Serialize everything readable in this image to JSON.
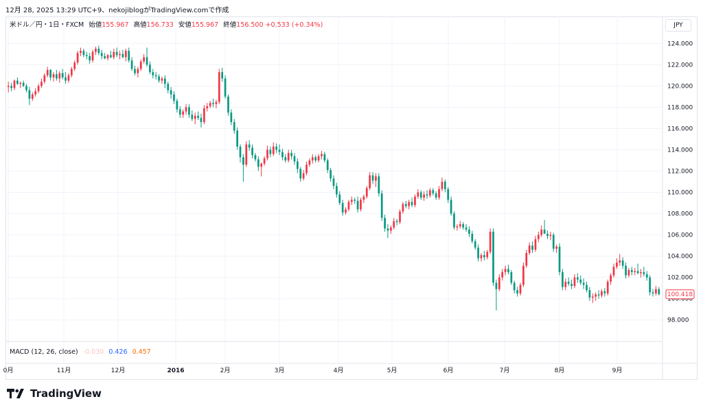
{
  "timestamp": "12月 28, 2025 13:29 UTC+9、nekojiblogがTradingView.comで作成",
  "legend": {
    "symbol": "米ドル／円・1日・FXCM",
    "open_label": "始値",
    "open": "155.967",
    "high_label": "高値",
    "high": "156.733",
    "low_label": "安値",
    "low": "155.967",
    "close_label": "終値",
    "close": "156.500",
    "change": "+0.533 (+0.34%)"
  },
  "currency": "JPY",
  "macd": {
    "label": "MACD (12, 26, close)",
    "hist": "-0.030",
    "macd": "0.426",
    "signal": "0.457"
  },
  "logo_text": "TradingView",
  "colors": {
    "up": "#f23645",
    "down": "#089981",
    "grid": "#f0f3fa",
    "price_tag": "#f23645"
  },
  "chart_data": {
    "type": "candlestick",
    "ylim": [
      96.5,
      125.5
    ],
    "yticks": [
      "124.000",
      "122.000",
      "120.000",
      "118.000",
      "116.000",
      "114.000",
      "112.000",
      "110.000",
      "108.000",
      "106.000",
      "104.000",
      "102.000",
      "100.000",
      "98.000"
    ],
    "last_price": "100.418",
    "x_labels": [
      "0月",
      "11月",
      "12月",
      "2016",
      "2月",
      "3月",
      "4月",
      "5月",
      "6月",
      "7月",
      "8月",
      "9月"
    ],
    "candles": [
      [
        119.9,
        120.4,
        119.4,
        120.0
      ],
      [
        120.0,
        120.3,
        119.5,
        119.8
      ],
      [
        119.8,
        120.6,
        119.6,
        120.5
      ],
      [
        120.5,
        120.8,
        120.1,
        120.2
      ],
      [
        120.2,
        120.4,
        119.8,
        120.3
      ],
      [
        120.3,
        120.5,
        119.9,
        120.0
      ],
      [
        120.0,
        120.2,
        119.4,
        119.6
      ],
      [
        119.6,
        119.9,
        118.2,
        118.8
      ],
      [
        118.8,
        119.4,
        118.6,
        119.2
      ],
      [
        119.2,
        119.8,
        119.0,
        119.5
      ],
      [
        119.5,
        120.2,
        119.3,
        120.0
      ],
      [
        120.0,
        120.7,
        119.8,
        120.4
      ],
      [
        120.4,
        121.2,
        120.2,
        121.0
      ],
      [
        121.0,
        121.8,
        120.8,
        121.5
      ],
      [
        121.5,
        121.6,
        120.5,
        120.8
      ],
      [
        120.8,
        121.3,
        120.4,
        121.1
      ],
      [
        121.1,
        121.5,
        120.5,
        120.7
      ],
      [
        120.7,
        121.4,
        120.3,
        121.2
      ],
      [
        121.2,
        121.6,
        120.6,
        120.8
      ],
      [
        120.8,
        121.3,
        120.2,
        120.5
      ],
      [
        120.5,
        121.2,
        120.3,
        121.0
      ],
      [
        121.0,
        121.8,
        120.8,
        121.6
      ],
      [
        121.6,
        122.4,
        121.4,
        122.2
      ],
      [
        122.2,
        123.3,
        122.0,
        123.1
      ],
      [
        123.1,
        123.6,
        122.8,
        123.3
      ],
      [
        123.3,
        123.5,
        122.7,
        122.9
      ],
      [
        122.9,
        123.2,
        122.5,
        122.8
      ],
      [
        122.8,
        123.1,
        122.1,
        122.4
      ],
      [
        122.4,
        123.4,
        122.2,
        123.2
      ],
      [
        123.2,
        123.7,
        122.9,
        123.5
      ],
      [
        123.5,
        123.8,
        122.9,
        123.1
      ],
      [
        123.1,
        123.4,
        122.5,
        122.8
      ],
      [
        122.8,
        123.1,
        122.5,
        122.6
      ],
      [
        122.6,
        123.0,
        122.4,
        122.9
      ],
      [
        122.9,
        123.3,
        122.6,
        122.7
      ],
      [
        122.7,
        123.5,
        122.5,
        123.2
      ],
      [
        123.2,
        123.6,
        122.7,
        122.9
      ],
      [
        122.9,
        123.3,
        122.5,
        123.0
      ],
      [
        123.0,
        123.4,
        122.6,
        122.7
      ],
      [
        122.7,
        123.5,
        122.3,
        123.3
      ],
      [
        123.3,
        123.6,
        122.2,
        122.4
      ],
      [
        122.4,
        122.7,
        121.4,
        121.6
      ],
      [
        121.6,
        121.9,
        121.0,
        121.2
      ],
      [
        121.2,
        121.8,
        120.8,
        121.6
      ],
      [
        121.6,
        122.5,
        121.4,
        122.3
      ],
      [
        122.3,
        123.0,
        122.1,
        122.7
      ],
      [
        122.7,
        123.6,
        121.8,
        122.0
      ],
      [
        122.0,
        122.3,
        121.1,
        121.3
      ],
      [
        121.3,
        121.6,
        120.7,
        121.0
      ],
      [
        121.0,
        121.3,
        120.6,
        120.9
      ],
      [
        120.9,
        121.1,
        120.3,
        120.5
      ],
      [
        120.5,
        120.9,
        120.2,
        120.7
      ],
      [
        120.7,
        121.0,
        119.8,
        120.2
      ],
      [
        120.2,
        120.4,
        119.3,
        119.6
      ],
      [
        119.6,
        119.9,
        118.8,
        119.2
      ],
      [
        119.2,
        119.5,
        118.3,
        118.6
      ],
      [
        118.6,
        118.8,
        117.5,
        117.8
      ],
      [
        117.8,
        118.1,
        117.0,
        117.3
      ],
      [
        117.3,
        117.8,
        117.0,
        117.6
      ],
      [
        117.6,
        118.3,
        117.3,
        118.0
      ],
      [
        118.0,
        118.3,
        117.0,
        117.3
      ],
      [
        117.3,
        117.7,
        116.7,
        116.9
      ],
      [
        116.9,
        117.5,
        116.4,
        117.2
      ],
      [
        117.2,
        117.6,
        116.8,
        117.0
      ],
      [
        117.0,
        117.4,
        116.1,
        116.6
      ],
      [
        116.6,
        118.2,
        116.4,
        117.9
      ],
      [
        117.9,
        118.4,
        117.6,
        118.1
      ],
      [
        118.1,
        118.6,
        117.9,
        118.4
      ],
      [
        118.4,
        118.8,
        118.0,
        118.3
      ],
      [
        118.3,
        118.7,
        117.9,
        118.5
      ],
      [
        118.5,
        121.6,
        118.3,
        121.3
      ],
      [
        121.3,
        121.7,
        120.4,
        120.7
      ],
      [
        120.7,
        121.0,
        118.8,
        119.0
      ],
      [
        119.0,
        119.2,
        117.2,
        117.5
      ],
      [
        117.5,
        117.8,
        116.3,
        116.6
      ],
      [
        116.6,
        116.9,
        115.5,
        115.8
      ],
      [
        115.8,
        116.1,
        114.0,
        114.3
      ],
      [
        114.3,
        114.5,
        112.8,
        113.3
      ],
      [
        113.3,
        113.6,
        111.0,
        112.6
      ],
      [
        112.6,
        114.8,
        112.4,
        114.5
      ],
      [
        114.5,
        114.9,
        113.9,
        114.2
      ],
      [
        114.2,
        114.5,
        113.2,
        113.5
      ],
      [
        113.5,
        113.7,
        112.9,
        113.1
      ],
      [
        113.1,
        113.4,
        112.0,
        112.4
      ],
      [
        112.4,
        112.8,
        111.5,
        112.7
      ],
      [
        112.7,
        113.4,
        112.5,
        113.2
      ],
      [
        113.2,
        114.4,
        113.0,
        114.0
      ],
      [
        114.0,
        114.3,
        113.3,
        113.6
      ],
      [
        113.6,
        114.7,
        113.4,
        114.3
      ],
      [
        114.3,
        114.6,
        113.7,
        114.0
      ],
      [
        114.0,
        114.5,
        113.5,
        113.8
      ],
      [
        113.8,
        114.1,
        113.0,
        113.3
      ],
      [
        113.3,
        113.6,
        112.8,
        113.0
      ],
      [
        113.0,
        114.0,
        112.8,
        113.7
      ],
      [
        113.7,
        114.0,
        113.1,
        113.4
      ],
      [
        113.4,
        113.7,
        112.6,
        112.9
      ],
      [
        112.9,
        113.2,
        111.8,
        112.2
      ],
      [
        112.2,
        112.4,
        111.0,
        111.3
      ],
      [
        111.3,
        112.1,
        111.1,
        111.8
      ],
      [
        111.8,
        112.9,
        111.6,
        112.6
      ],
      [
        112.6,
        113.2,
        112.4,
        113.0
      ],
      [
        113.0,
        113.6,
        112.7,
        113.3
      ],
      [
        113.3,
        113.5,
        112.8,
        113.0
      ],
      [
        113.0,
        113.6,
        112.8,
        113.4
      ],
      [
        113.4,
        113.9,
        113.1,
        113.6
      ],
      [
        113.6,
        113.8,
        112.8,
        113.0
      ],
      [
        113.0,
        113.2,
        111.8,
        112.1
      ],
      [
        112.1,
        112.3,
        111.0,
        111.3
      ],
      [
        111.3,
        111.6,
        110.3,
        110.6
      ],
      [
        110.6,
        110.9,
        109.5,
        109.8
      ],
      [
        109.8,
        110.1,
        108.8,
        109.0
      ],
      [
        109.0,
        109.3,
        107.8,
        108.1
      ],
      [
        108.1,
        108.6,
        107.9,
        108.4
      ],
      [
        108.4,
        109.3,
        108.2,
        109.1
      ],
      [
        109.1,
        109.6,
        108.8,
        109.3
      ],
      [
        109.3,
        109.5,
        108.9,
        109.2
      ],
      [
        109.2,
        109.6,
        108.1,
        108.4
      ],
      [
        108.4,
        109.5,
        108.2,
        109.3
      ],
      [
        109.3,
        109.8,
        109.0,
        109.6
      ],
      [
        109.6,
        110.6,
        109.4,
        110.4
      ],
      [
        110.4,
        111.9,
        110.2,
        111.6
      ],
      [
        111.6,
        111.9,
        110.8,
        111.1
      ],
      [
        111.1,
        111.8,
        110.5,
        111.5
      ],
      [
        111.5,
        111.8,
        109.6,
        109.9
      ],
      [
        109.9,
        110.2,
        107.3,
        107.6
      ],
      [
        107.6,
        107.9,
        106.3,
        106.6
      ],
      [
        106.6,
        107.0,
        105.7,
        106.4
      ],
      [
        106.4,
        106.9,
        106.1,
        106.7
      ],
      [
        106.7,
        107.6,
        106.5,
        107.3
      ],
      [
        107.3,
        107.5,
        106.9,
        107.2
      ],
      [
        107.2,
        108.4,
        107.0,
        108.2
      ],
      [
        108.2,
        109.1,
        108.0,
        108.9
      ],
      [
        108.9,
        109.2,
        108.5,
        108.7
      ],
      [
        108.7,
        109.3,
        108.4,
        109.1
      ],
      [
        109.1,
        109.5,
        108.6,
        108.8
      ],
      [
        108.8,
        109.8,
        108.6,
        109.6
      ],
      [
        109.6,
        110.3,
        109.4,
        110.0
      ],
      [
        110.0,
        110.2,
        109.3,
        109.5
      ],
      [
        109.5,
        110.1,
        109.2,
        109.8
      ],
      [
        109.8,
        110.2,
        109.4,
        109.7
      ],
      [
        109.7,
        110.4,
        109.5,
        110.2
      ],
      [
        110.2,
        110.4,
        109.7,
        109.9
      ],
      [
        109.9,
        110.1,
        109.3,
        109.5
      ],
      [
        109.5,
        110.6,
        109.3,
        110.3
      ],
      [
        110.3,
        111.4,
        110.1,
        111.0
      ],
      [
        111.0,
        111.2,
        110.0,
        110.3
      ],
      [
        110.3,
        110.5,
        109.0,
        109.3
      ],
      [
        109.3,
        109.6,
        107.8,
        108.0
      ],
      [
        108.0,
        108.2,
        106.5,
        106.7
      ],
      [
        106.7,
        107.0,
        106.4,
        106.8
      ],
      [
        106.8,
        107.3,
        106.6,
        107.0
      ],
      [
        107.0,
        107.2,
        106.5,
        106.7
      ],
      [
        106.7,
        107.0,
        106.3,
        106.5
      ],
      [
        106.5,
        106.8,
        105.8,
        106.1
      ],
      [
        106.1,
        106.4,
        105.2,
        105.4
      ],
      [
        105.4,
        105.6,
        104.6,
        104.8
      ],
      [
        104.8,
        105.1,
        103.5,
        103.8
      ],
      [
        103.8,
        104.3,
        103.5,
        104.1
      ],
      [
        104.1,
        104.5,
        103.6,
        103.9
      ],
      [
        103.9,
        104.6,
        103.7,
        104.4
      ],
      [
        104.4,
        106.6,
        104.2,
        106.3
      ],
      [
        106.3,
        106.6,
        101.2,
        101.5
      ],
      [
        101.5,
        101.8,
        98.9,
        100.9
      ],
      [
        100.9,
        102.3,
        100.7,
        102.0
      ],
      [
        102.0,
        102.8,
        101.7,
        102.5
      ],
      [
        102.5,
        103.1,
        102.2,
        102.8
      ],
      [
        102.8,
        103.2,
        102.3,
        102.5
      ],
      [
        102.5,
        102.7,
        101.3,
        101.5
      ],
      [
        101.5,
        101.7,
        100.5,
        100.8
      ],
      [
        100.8,
        101.1,
        100.2,
        100.5
      ],
      [
        100.5,
        101.5,
        100.3,
        101.3
      ],
      [
        101.3,
        103.4,
        101.1,
        103.1
      ],
      [
        103.1,
        104.6,
        102.9,
        104.3
      ],
      [
        104.3,
        105.3,
        104.1,
        105.0
      ],
      [
        105.0,
        105.4,
        104.3,
        104.6
      ],
      [
        104.6,
        105.9,
        104.4,
        105.6
      ],
      [
        105.6,
        106.3,
        105.3,
        106.0
      ],
      [
        106.0,
        106.9,
        105.8,
        106.5
      ],
      [
        106.5,
        107.4,
        106.2,
        106.1
      ],
      [
        106.1,
        106.4,
        105.6,
        105.9
      ],
      [
        105.9,
        106.3,
        105.5,
        106.0
      ],
      [
        106.0,
        106.2,
        104.4,
        104.7
      ],
      [
        104.7,
        105.1,
        104.3,
        104.9
      ],
      [
        104.9,
        105.2,
        102.2,
        102.5
      ],
      [
        102.5,
        102.8,
        100.8,
        101.1
      ],
      [
        101.1,
        101.9,
        100.8,
        101.6
      ],
      [
        101.6,
        102.0,
        101.2,
        101.4
      ],
      [
        101.4,
        101.8,
        100.9,
        101.2
      ],
      [
        101.2,
        102.3,
        101.0,
        102.0
      ],
      [
        102.0,
        102.4,
        101.5,
        101.8
      ],
      [
        101.8,
        102.2,
        101.3,
        101.5
      ],
      [
        101.5,
        101.9,
        100.9,
        101.3
      ],
      [
        101.3,
        101.6,
        100.6,
        100.8
      ],
      [
        100.8,
        101.1,
        99.8,
        100.1
      ],
      [
        100.1,
        100.5,
        99.6,
        100.2
      ],
      [
        100.2,
        100.6,
        99.8,
        100.4
      ],
      [
        100.4,
        100.8,
        100.0,
        100.3
      ],
      [
        100.3,
        100.9,
        100.1,
        100.7
      ],
      [
        100.7,
        101.0,
        100.2,
        100.5
      ],
      [
        100.5,
        101.8,
        100.3,
        101.6
      ],
      [
        101.6,
        102.4,
        101.3,
        102.2
      ],
      [
        102.2,
        103.3,
        102.0,
        103.0
      ],
      [
        103.0,
        103.8,
        102.8,
        103.4
      ],
      [
        103.4,
        104.2,
        103.1,
        103.6
      ],
      [
        103.6,
        103.9,
        102.8,
        103.1
      ],
      [
        103.1,
        103.4,
        101.9,
        102.2
      ],
      [
        102.2,
        102.9,
        102.0,
        102.7
      ],
      [
        102.7,
        103.0,
        102.2,
        102.5
      ],
      [
        102.5,
        102.9,
        102.2,
        102.6
      ],
      [
        102.6,
        103.3,
        102.3,
        102.4
      ],
      [
        102.4,
        102.8,
        102.0,
        102.5
      ],
      [
        102.5,
        103.0,
        102.1,
        102.3
      ],
      [
        102.3,
        102.6,
        101.7,
        102.0
      ],
      [
        102.0,
        102.2,
        100.3,
        100.6
      ],
      [
        100.6,
        100.9,
        100.2,
        100.5
      ],
      [
        100.5,
        101.2,
        100.3,
        100.9
      ],
      [
        100.9,
        101.1,
        100.3,
        100.42
      ]
    ]
  }
}
